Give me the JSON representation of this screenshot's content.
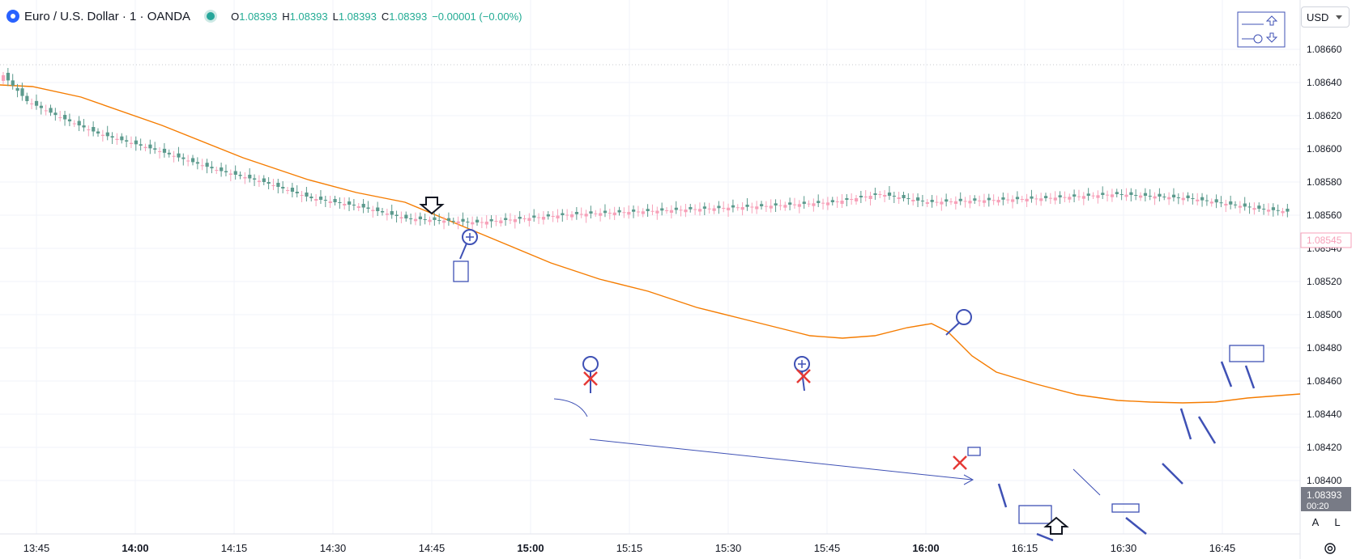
{
  "header": {
    "symbol": "Euro / U.S. Dollar · 1 · OANDA",
    "open_key": "O",
    "open": "1.08393",
    "high_key": "H",
    "high": "1.08393",
    "low_key": "L",
    "low": "1.08393",
    "close_key": "C",
    "close": "1.08393",
    "change": "−0.00001 (−0.00%)"
  },
  "currency_button": "USD",
  "scale_buttons": {
    "auto": "A",
    "log": "L"
  },
  "chart_data": {
    "type": "candlestick",
    "symbol": "EURUSD",
    "interval": "1",
    "y_ticks": [
      "1.08660",
      "1.08640",
      "1.08620",
      "1.08600",
      "1.08580",
      "1.08560",
      "1.08540",
      "1.08520",
      "1.08500",
      "1.08480",
      "1.08460",
      "1.08440",
      "1.08420",
      "1.08400"
    ],
    "x_ticks": [
      {
        "label": "13:45",
        "bold": false
      },
      {
        "label": "14:00",
        "bold": true
      },
      {
        "label": "14:15",
        "bold": false
      },
      {
        "label": "14:30",
        "bold": false
      },
      {
        "label": "14:45",
        "bold": false
      },
      {
        "label": "15:00",
        "bold": true
      },
      {
        "label": "15:15",
        "bold": false
      },
      {
        "label": "15:30",
        "bold": false
      },
      {
        "label": "15:45",
        "bold": false
      },
      {
        "label": "16:00",
        "bold": true
      },
      {
        "label": "16:15",
        "bold": false
      },
      {
        "label": "16:30",
        "bold": false
      },
      {
        "label": "16:45",
        "bold": false
      }
    ],
    "price_labels": [
      {
        "value": "1.08545",
        "kind": "line",
        "color": "#f7a1b9"
      },
      {
        "value": "1.08393",
        "kind": "last",
        "sub": "00:20",
        "color": "#787b86"
      }
    ],
    "colors": {
      "up": "#f7a1b9",
      "down": "#5c9a8d",
      "ma": "#f57c00",
      "drawing": "#3f51b5",
      "cross": "#e53935"
    }
  }
}
